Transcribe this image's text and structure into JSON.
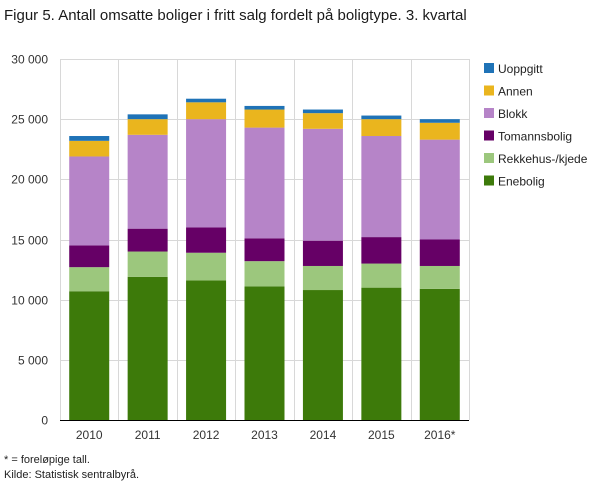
{
  "title": "Figur 5. Antall omsatte boliger i fritt salg fordelt på boligtype. 3. kvartal",
  "footnotes": {
    "note": "* = foreløpige tall.",
    "source": "Kilde: Statistisk sentralbyrå."
  },
  "colors": {
    "Enebolig": "#3d7a0a",
    "Rekkehus-/kjede": "#9cc77d",
    "Tomannsbolig": "#660066",
    "Blokk": "#b684c8",
    "Annen": "#eab51e",
    "Uoppgitt": "#1f73b7"
  },
  "chart_data": {
    "type": "bar",
    "stacked": true,
    "title": "Figur 5. Antall omsatte boliger i fritt salg fordelt på boligtype. 3. kvartal",
    "xlabel": "",
    "ylabel": "",
    "ylim": [
      0,
      30000
    ],
    "yticks": [
      0,
      5000,
      10000,
      15000,
      20000,
      25000,
      30000
    ],
    "ytick_labels": [
      "0",
      "5 000",
      "10 000",
      "15 000",
      "20 000",
      "25 000",
      "30 000"
    ],
    "grid": true,
    "legend_position": "right",
    "categories": [
      "2010",
      "2011",
      "2012",
      "2013",
      "2014",
      "2015",
      "2016*"
    ],
    "series": [
      {
        "name": "Enebolig",
        "values": [
          10700,
          11900,
          11600,
          11100,
          10800,
          11000,
          10900
        ]
      },
      {
        "name": "Rekkehus-/kjede",
        "values": [
          2000,
          2100,
          2300,
          2100,
          2000,
          2000,
          1900
        ]
      },
      {
        "name": "Tomannsbolig",
        "values": [
          1800,
          1900,
          2100,
          1900,
          2100,
          2200,
          2200
        ]
      },
      {
        "name": "Blokk",
        "values": [
          7400,
          7800,
          9000,
          9200,
          9300,
          8400,
          8300
        ]
      },
      {
        "name": "Annen",
        "values": [
          1300,
          1300,
          1400,
          1500,
          1300,
          1400,
          1400
        ]
      },
      {
        "name": "Uoppgitt",
        "values": [
          400,
          400,
          300,
          300,
          300,
          300,
          300
        ]
      }
    ],
    "legend_order": [
      "Uoppgitt",
      "Annen",
      "Blokk",
      "Tomannsbolig",
      "Rekkehus-/kjede",
      "Enebolig"
    ]
  }
}
